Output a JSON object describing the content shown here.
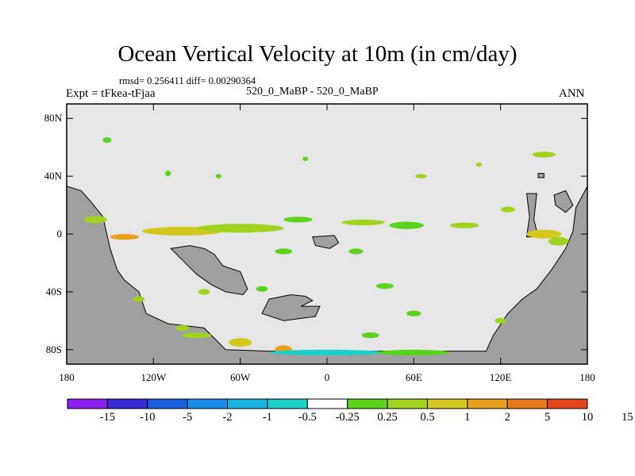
{
  "title": "Ocean Vertical Velocity at 10m (in cm/day)",
  "stats_line": "rmsd= 0.256411 diff= 0.00290364",
  "left_label": "Expt = tFkea-tFjaa",
  "center_label": "520_0_MaBP - 520_0_MaBP",
  "right_label": "ANN",
  "colors": {
    "land": "#a0a0a0",
    "ocean_background": "#e6e6e6",
    "palette": [
      "#8b1ff0",
      "#3b2bd6",
      "#1a5fe0",
      "#1a8ae8",
      "#18b4e0",
      "#1ad2c8",
      "#ffffff",
      "#5ad21e",
      "#a0d21e",
      "#d2c81e",
      "#e6a01e",
      "#e6781e",
      "#e6461e"
    ]
  },
  "chart_data": {
    "type": "map",
    "projection": "cylindrical-equidistant",
    "lon_range": [
      -180,
      180
    ],
    "lat_range": [
      -90,
      90
    ],
    "lon_ticks": [
      "180",
      "120W",
      "60W",
      "0",
      "60E",
      "120E",
      "180"
    ],
    "lat_ticks": [
      "80N",
      "40N",
      "0",
      "40S",
      "80S"
    ],
    "colorbar_levels": [
      "-15",
      "-10",
      "-5",
      "-2",
      "-1",
      "-0.5",
      "-0.25",
      "0.25",
      "0.5",
      "1",
      "2",
      "5",
      "10",
      "15"
    ]
  }
}
